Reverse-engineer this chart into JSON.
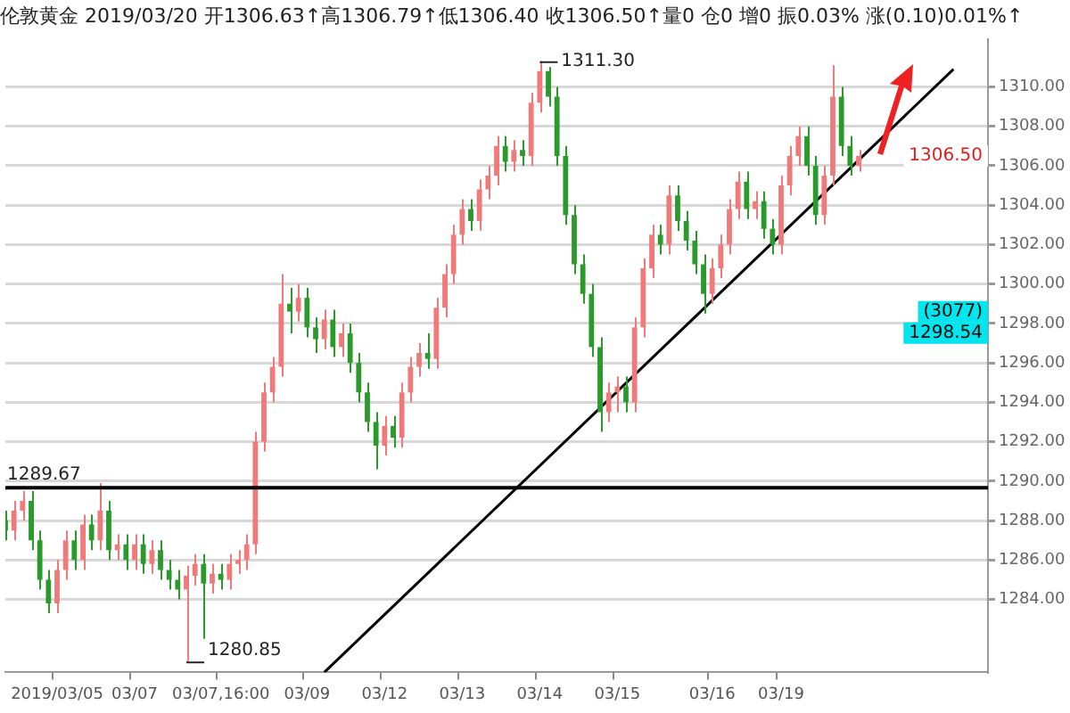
{
  "chart_data": {
    "type": "candlestick",
    "title": "伦敦黄金 2019/03/20 开1306.63↑高1306.79↑低1306.40 收1306.50↑量0 仓0 增0 振0.03% 涨(0.10)0.01%↑",
    "categories": [
      null,
      null,
      null,
      null,
      null,
      null,
      "2019/03/05",
      null,
      null,
      null,
      null,
      null,
      null,
      null,
      null,
      "03/07",
      null,
      null,
      null,
      null,
      null,
      null,
      null,
      null,
      null,
      "03/07,16:00",
      null,
      null,
      null,
      null,
      null,
      null,
      null,
      null,
      null,
      "03/09",
      null,
      null,
      null,
      null,
      null,
      null,
      null,
      null,
      "03/12",
      null,
      null,
      null,
      null,
      null,
      null,
      null,
      null,
      "03/13",
      null,
      null,
      null,
      null,
      null,
      null,
      null,
      null,
      "03/14",
      null,
      null,
      null,
      null,
      null,
      null,
      null,
      null,
      "03/15",
      null,
      null,
      null,
      null,
      null,
      null,
      null,
      null,
      null,
      null,
      "03/16",
      null,
      null,
      null,
      null,
      null,
      null,
      null,
      "03/19",
      null,
      null,
      null,
      null,
      null,
      null,
      null,
      null,
      null,
      null,
      null,
      null,
      null,
      null,
      null,
      null,
      null,
      null,
      null,
      null,
      null,
      null,
      null,
      null
    ],
    "ohlc": [
      [
        1288.0,
        1288.5,
        1287.0,
        1287.5
      ],
      [
        1287.5,
        1289.0,
        1287.0,
        1288.5
      ],
      [
        1288.5,
        1289.5,
        1288.0,
        1289.0
      ],
      [
        1289.0,
        1289.5,
        1286.5,
        1287.0
      ],
      [
        1287.0,
        1287.5,
        1284.5,
        1285.0
      ],
      [
        1285.0,
        1285.5,
        1283.3,
        1283.8
      ],
      [
        1283.8,
        1286.0,
        1283.3,
        1285.5
      ],
      [
        1285.5,
        1287.5,
        1285.0,
        1287.0
      ],
      [
        1287.0,
        1287.5,
        1285.5,
        1286.0
      ],
      [
        1286.0,
        1288.3,
        1285.5,
        1287.8
      ],
      [
        1287.8,
        1288.3,
        1286.5,
        1287.0
      ],
      [
        1287.0,
        1289.9,
        1286.5,
        1288.5
      ],
      [
        1288.5,
        1289.0,
        1286.0,
        1286.5
      ],
      [
        1286.5,
        1287.3,
        1286.0,
        1286.8
      ],
      [
        1286.8,
        1287.3,
        1285.5,
        1286.0
      ],
      [
        1286.0,
        1287.3,
        1285.5,
        1286.8
      ],
      [
        1286.8,
        1287.3,
        1285.3,
        1285.8
      ],
      [
        1285.8,
        1287.0,
        1285.3,
        1286.5
      ],
      [
        1286.5,
        1287.0,
        1285.0,
        1285.5
      ],
      [
        1285.5,
        1286.0,
        1284.5,
        1285.0
      ],
      [
        1285.0,
        1285.5,
        1284.0,
        1284.5
      ],
      [
        1284.5,
        1285.7,
        1280.85,
        1285.2
      ],
      [
        1285.2,
        1286.3,
        1284.7,
        1285.8
      ],
      [
        1285.8,
        1286.3,
        1282.0,
        1284.8
      ],
      [
        1284.8,
        1285.8,
        1284.3,
        1285.3
      ],
      [
        1285.3,
        1285.8,
        1284.5,
        1285.0
      ],
      [
        1285.0,
        1286.3,
        1284.5,
        1285.8
      ],
      [
        1285.8,
        1286.5,
        1285.3,
        1286.0
      ],
      [
        1286.0,
        1287.3,
        1285.5,
        1286.8
      ],
      [
        1286.8,
        1292.5,
        1286.3,
        1292.0
      ],
      [
        1292.0,
        1295.0,
        1291.5,
        1294.5
      ],
      [
        1294.5,
        1296.3,
        1294.0,
        1295.8
      ],
      [
        1295.8,
        1300.5,
        1295.3,
        1299.0
      ],
      [
        1299.0,
        1299.8,
        1297.5,
        1298.6
      ],
      [
        1298.6,
        1300.0,
        1298.1,
        1299.3
      ],
      [
        1299.3,
        1299.8,
        1297.3,
        1297.8
      ],
      [
        1297.8,
        1298.3,
        1296.5,
        1297.2
      ],
      [
        1297.2,
        1298.7,
        1296.7,
        1298.2
      ],
      [
        1298.2,
        1298.7,
        1296.3,
        1296.8
      ],
      [
        1296.8,
        1298.0,
        1296.3,
        1297.5
      ],
      [
        1297.5,
        1298.0,
        1295.5,
        1296.0
      ],
      [
        1296.0,
        1296.5,
        1294.0,
        1294.5
      ],
      [
        1294.5,
        1295.0,
        1292.5,
        1293.0
      ],
      [
        1293.0,
        1293.5,
        1290.6,
        1291.8
      ],
      [
        1291.8,
        1293.3,
        1291.3,
        1292.8
      ],
      [
        1292.8,
        1293.3,
        1291.7,
        1292.2
      ],
      [
        1292.2,
        1295.0,
        1291.7,
        1294.5
      ],
      [
        1294.5,
        1296.3,
        1294.0,
        1295.8
      ],
      [
        1295.8,
        1297.0,
        1295.3,
        1296.5
      ],
      [
        1296.5,
        1297.5,
        1295.7,
        1296.2
      ],
      [
        1296.2,
        1299.3,
        1295.7,
        1298.8
      ],
      [
        1298.8,
        1301.0,
        1298.3,
        1300.5
      ],
      [
        1300.5,
        1303.0,
        1300.0,
        1302.5
      ],
      [
        1302.5,
        1304.3,
        1302.0,
        1303.8
      ],
      [
        1303.8,
        1304.3,
        1302.7,
        1303.2
      ],
      [
        1303.2,
        1305.3,
        1302.7,
        1304.8
      ],
      [
        1304.8,
        1306.0,
        1304.3,
        1305.5
      ],
      [
        1305.5,
        1307.5,
        1305.0,
        1307.0
      ],
      [
        1307.0,
        1307.5,
        1305.7,
        1306.2
      ],
      [
        1306.2,
        1307.3,
        1305.7,
        1306.8
      ],
      [
        1306.8,
        1307.3,
        1306.0,
        1306.5
      ],
      [
        1306.5,
        1309.7,
        1306.0,
        1309.2
      ],
      [
        1309.2,
        1311.3,
        1308.7,
        1310.8
      ],
      [
        1310.8,
        1311.0,
        1309.0,
        1309.5
      ],
      [
        1309.5,
        1310.0,
        1306.0,
        1306.5
      ],
      [
        1306.5,
        1307.0,
        1303.0,
        1303.5
      ],
      [
        1303.5,
        1304.0,
        1300.5,
        1301.0
      ],
      [
        1301.0,
        1301.5,
        1299.0,
        1299.5
      ],
      [
        1299.5,
        1300.0,
        1296.3,
        1296.8
      ],
      [
        1296.8,
        1297.3,
        1292.5,
        1293.5
      ],
      [
        1293.5,
        1295.0,
        1293.0,
        1294.5
      ],
      [
        1294.5,
        1295.3,
        1293.5,
        1294.8
      ],
      [
        1294.8,
        1295.3,
        1293.5,
        1294.0
      ],
      [
        1294.0,
        1298.3,
        1293.5,
        1297.8
      ],
      [
        1297.8,
        1301.3,
        1297.3,
        1300.8
      ],
      [
        1300.8,
        1303.0,
        1300.3,
        1302.5
      ],
      [
        1302.5,
        1303.0,
        1301.5,
        1302.0
      ],
      [
        1302.0,
        1305.0,
        1301.5,
        1304.5
      ],
      [
        1304.5,
        1305.0,
        1302.7,
        1303.2
      ],
      [
        1303.2,
        1303.7,
        1301.7,
        1302.2
      ],
      [
        1302.2,
        1302.7,
        1300.5,
        1301.0
      ],
      [
        1301.0,
        1301.5,
        1298.5,
        1299.5
      ],
      [
        1299.5,
        1301.3,
        1299.0,
        1300.8
      ],
      [
        1300.8,
        1302.5,
        1300.3,
        1302.0
      ],
      [
        1302.0,
        1304.3,
        1301.5,
        1303.8
      ],
      [
        1303.8,
        1305.7,
        1303.3,
        1305.2
      ],
      [
        1305.2,
        1305.7,
        1303.3,
        1303.8
      ],
      [
        1303.8,
        1304.7,
        1303.3,
        1304.2
      ],
      [
        1304.2,
        1304.7,
        1302.3,
        1302.8
      ],
      [
        1302.8,
        1303.3,
        1301.5,
        1302.0
      ],
      [
        1302.0,
        1305.5,
        1301.5,
        1305.0
      ],
      [
        1305.0,
        1307.0,
        1304.5,
        1306.5
      ],
      [
        1306.5,
        1308.0,
        1306.0,
        1307.5
      ],
      [
        1307.5,
        1308.0,
        1305.5,
        1306.0
      ],
      [
        1306.0,
        1306.5,
        1303.0,
        1303.5
      ],
      [
        1303.5,
        1306.0,
        1303.0,
        1305.5
      ],
      [
        1305.5,
        1311.1,
        1305.0,
        1309.5
      ],
      [
        1309.5,
        1310.0,
        1306.5,
        1307.0
      ],
      [
        1307.0,
        1307.5,
        1305.5,
        1306.0
      ],
      [
        1306.0,
        1306.8,
        1305.7,
        1306.5
      ],
      null,
      null,
      null,
      null,
      null,
      null,
      null,
      null,
      null,
      null,
      null,
      null,
      null,
      null,
      null
    ],
    "series": [
      {
        "type": "line",
        "color": "#000000",
        "values": [
          null,
          null,
          null,
          null,
          null,
          null,
          null,
          null,
          null,
          null,
          null,
          null,
          null,
          null,
          null,
          null,
          null,
          null,
          null,
          null,
          null,
          null,
          null,
          null,
          null,
          null,
          null,
          null,
          null,
          null,
          null,
          null,
          null,
          null,
          null,
          null,
          null,
          1280.3,
          null,
          null,
          null,
          null,
          null,
          null,
          null,
          null,
          null,
          null,
          null,
          null,
          null,
          null,
          null,
          null,
          null,
          null,
          null,
          null,
          null,
          null,
          null,
          null,
          null,
          null,
          null,
          null,
          null,
          null,
          null,
          null,
          null,
          null,
          null,
          null,
          null,
          null,
          null,
          null,
          null,
          null,
          null,
          null,
          null,
          null,
          null,
          null,
          null,
          null,
          null,
          null,
          null,
          null,
          null,
          null,
          null,
          null,
          null,
          null,
          null,
          null,
          null,
          null,
          null,
          null,
          null,
          null,
          null,
          null,
          null,
          null,
          1310.9,
          null,
          null,
          null,
          null
        ]
      }
    ],
    "ylim": [
      1280.3,
      1312.4
    ],
    "yticks": [
      {
        "value": 1284,
        "label": "1284.00"
      },
      {
        "value": 1286,
        "label": "1286.00"
      },
      {
        "value": 1288,
        "label": "1288.00"
      },
      {
        "value": 1290,
        "label": "1290.00"
      },
      {
        "value": 1292,
        "label": "1292.00"
      },
      {
        "value": 1294,
        "label": "1294.00"
      },
      {
        "value": 1296,
        "label": "1296.00"
      },
      {
        "value": 1298,
        "label": "1298.00"
      },
      {
        "value": 1300,
        "label": "1300.00"
      },
      {
        "value": 1302,
        "label": "1302.00"
      },
      {
        "value": 1304,
        "label": "1304.00"
      },
      {
        "value": 1306,
        "label": "1306.00"
      },
      {
        "value": 1308,
        "label": "1308.00"
      },
      {
        "value": 1310,
        "label": "1310.00"
      }
    ],
    "grid": "y",
    "ref_lines": [
      {
        "axis": "y",
        "value": 1289.67,
        "label": "1289.67",
        "color": "#000000"
      }
    ],
    "annotations": [
      "1311.30",
      "1280.85",
      "1306.50",
      "(3077)",
      "1298.54"
    ]
  }
}
